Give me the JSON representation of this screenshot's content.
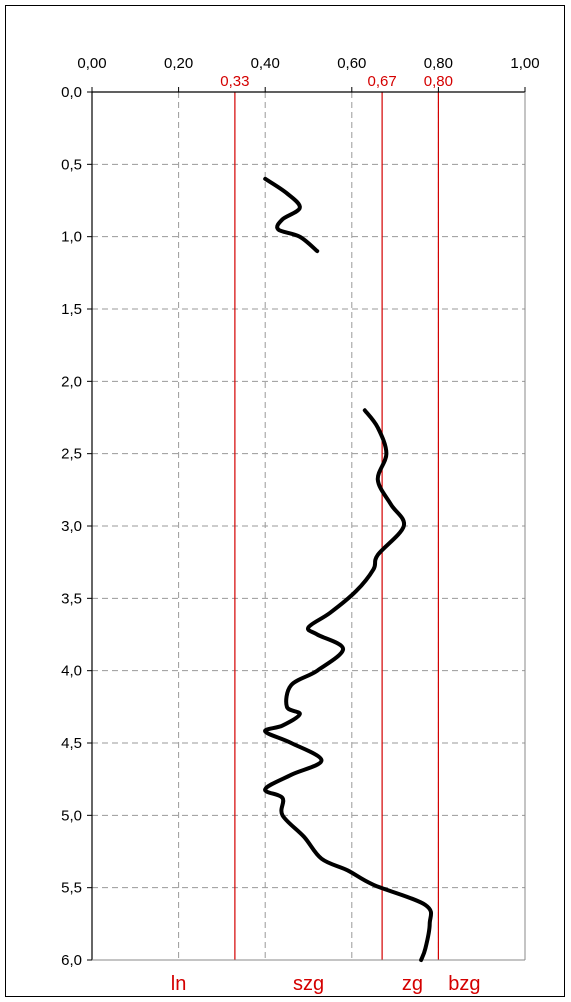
{
  "chart_data": {
    "type": "line",
    "x_axis": {
      "position": "top",
      "range": [
        0,
        1
      ],
      "ticks": [
        0,
        0.2,
        0.4,
        0.6,
        0.8,
        1.0
      ],
      "tick_labels": [
        "0,00",
        "0,20",
        "0,40",
        "0,60",
        "0,80",
        "1,00"
      ]
    },
    "y_axis": {
      "range": [
        0,
        6
      ],
      "inverted": true,
      "ticks": [
        0,
        0.5,
        1,
        1.5,
        2,
        2.5,
        3,
        3.5,
        4,
        4.5,
        5,
        5.5,
        6
      ],
      "tick_labels": [
        "0,0",
        "0,5",
        "1,0",
        "1,5",
        "2,0",
        "2,5",
        "3,0",
        "3,5",
        "4,0",
        "4,5",
        "5,0",
        "5,5",
        "6,0"
      ]
    },
    "grid": true,
    "reference_lines": [
      {
        "value": 0.33,
        "label": "0,33",
        "color": "#d40000"
      },
      {
        "value": 0.67,
        "label": "0,67",
        "color": "#d40000"
      },
      {
        "value": 0.8,
        "label": "0,80",
        "color": "#d40000"
      }
    ],
    "zone_labels": [
      {
        "label": "ln",
        "x": 0.2
      },
      {
        "label": "szg",
        "x": 0.5
      },
      {
        "label": "zg",
        "x": 0.74
      },
      {
        "label": "bzg",
        "x": 0.86
      }
    ],
    "series": [
      {
        "color": "#000000",
        "points": [
          [
            0.4,
            0.6
          ],
          [
            0.45,
            0.7
          ],
          [
            0.48,
            0.8
          ],
          [
            0.44,
            0.88
          ],
          [
            0.43,
            0.95
          ],
          [
            0.48,
            1.0
          ],
          [
            0.52,
            1.1
          ]
        ]
      },
      {
        "color": "#000000",
        "points": [
          [
            0.63,
            2.2
          ],
          [
            0.66,
            2.32
          ],
          [
            0.68,
            2.5
          ],
          [
            0.66,
            2.68
          ],
          [
            0.69,
            2.85
          ],
          [
            0.72,
            3.0
          ],
          [
            0.66,
            3.2
          ],
          [
            0.65,
            3.3
          ],
          [
            0.61,
            3.45
          ],
          [
            0.55,
            3.6
          ],
          [
            0.5,
            3.7
          ],
          [
            0.52,
            3.75
          ],
          [
            0.58,
            3.85
          ],
          [
            0.52,
            4.0
          ],
          [
            0.46,
            4.1
          ],
          [
            0.45,
            4.25
          ],
          [
            0.48,
            4.3
          ],
          [
            0.44,
            4.38
          ],
          [
            0.4,
            4.42
          ],
          [
            0.46,
            4.5
          ],
          [
            0.53,
            4.62
          ],
          [
            0.46,
            4.72
          ],
          [
            0.4,
            4.82
          ],
          [
            0.44,
            4.88
          ],
          [
            0.44,
            5.0
          ],
          [
            0.49,
            5.15
          ],
          [
            0.53,
            5.3
          ],
          [
            0.59,
            5.38
          ],
          [
            0.65,
            5.48
          ],
          [
            0.77,
            5.62
          ],
          [
            0.78,
            5.75
          ],
          [
            0.77,
            5.92
          ],
          [
            0.76,
            6.0
          ]
        ]
      }
    ]
  }
}
